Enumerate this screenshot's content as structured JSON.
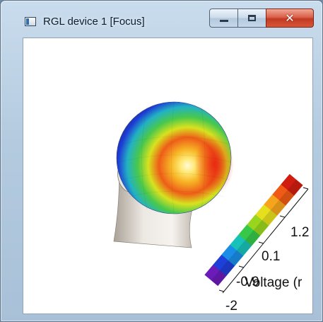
{
  "window": {
    "title": "RGL device 1 [Focus]"
  },
  "controls": {
    "minimize": "minimize",
    "maximize": "maximize",
    "close": "✕"
  },
  "colorbar": {
    "tick_labels": [
      "1.2",
      "0.1",
      "-0.9",
      "-2"
    ],
    "axis_label": "Voltage (r",
    "colors": [
      "#6a1bb8",
      "#1e3fd8",
      "#1a8ee6",
      "#19c2b8",
      "#37c84a",
      "#9ad51e",
      "#e6df1e",
      "#f5a41c",
      "#ef5a17",
      "#d01d10"
    ]
  },
  "head": {
    "skin_color": "#e8e4de",
    "scalp_colors": {
      "low": "#1e3cd6",
      "mid": "#2fc44a",
      "high": "#e81f12",
      "peak": "#fffbd8"
    }
  }
}
